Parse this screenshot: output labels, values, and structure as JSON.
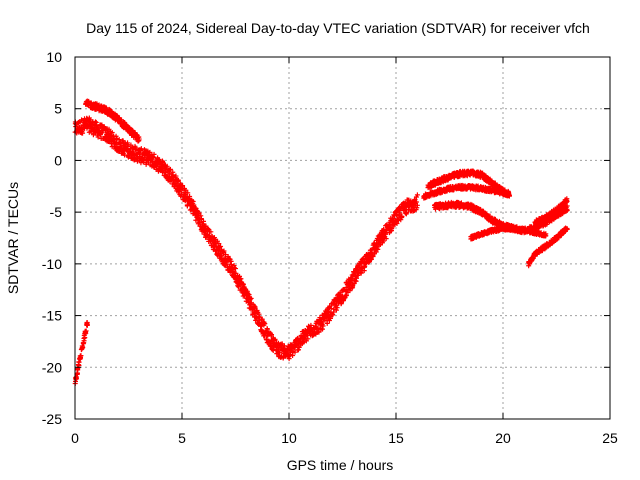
{
  "chart_data": {
    "type": "scatter",
    "title": "Day 115 of 2024, Sidereal Day-to-day VTEC variation (SDTVAR) for receiver vfch",
    "xlabel": "GPS time / hours",
    "ylabel": "SDTVAR / TECUs",
    "xlim": [
      0,
      25
    ],
    "ylim": [
      -25,
      10
    ],
    "xticks": [
      0,
      5,
      10,
      15,
      20,
      25
    ],
    "yticks": [
      -25,
      -20,
      -15,
      -10,
      -5,
      0,
      5,
      10
    ],
    "xtick_labels": [
      "0",
      "5",
      "10",
      "15",
      "20",
      "25"
    ],
    "ytick_labels": [
      "-25",
      "-20",
      "-15",
      "-10",
      "-5",
      "0",
      "5",
      "10"
    ],
    "grid": true,
    "legend": "none",
    "marker": "+",
    "series": [
      {
        "name": "main-trace",
        "color": "#ff0000",
        "x": [
          0.0,
          0.3,
          0.6,
          1.0,
          1.5,
          2.0,
          2.5,
          3.0,
          3.5,
          4.0,
          4.5,
          5.0,
          5.5,
          6.0,
          6.5,
          7.0,
          7.5,
          8.0,
          8.5,
          9.0,
          9.5,
          10.0,
          10.5,
          11.0,
          11.5,
          12.0,
          12.5,
          13.0,
          13.5,
          14.0,
          14.5,
          15.0,
          15.5,
          16.0
        ],
        "y": [
          3.0,
          3.3,
          3.5,
          3.0,
          2.5,
          1.5,
          1.0,
          0.5,
          0.2,
          -0.5,
          -1.5,
          -3.0,
          -4.5,
          -6.5,
          -8.0,
          -9.5,
          -11.0,
          -13.0,
          -15.0,
          -17.0,
          -18.3,
          -18.6,
          -17.5,
          -16.5,
          -15.8,
          -14.5,
          -13.0,
          -11.5,
          -10.0,
          -8.5,
          -7.0,
          -5.5,
          -4.5,
          -4.0
        ],
        "spread": 1.4
      },
      {
        "name": "upper-early-track",
        "color": "#ff0000",
        "x": [
          0.5,
          1.0,
          1.5,
          2.0,
          2.5,
          3.0
        ],
        "y": [
          5.5,
          5.2,
          4.8,
          4.0,
          3.0,
          2.0
        ],
        "spread": 0.6
      },
      {
        "name": "steep-start-segment",
        "color": "#ff0000",
        "x": [
          0.0,
          0.2,
          0.4,
          0.6
        ],
        "y": [
          -21.5,
          -19.5,
          -17.5,
          -15.5
        ],
        "spread": 0.5
      },
      {
        "name": "late-arc-1",
        "color": "#ff0000",
        "x": [
          16.5,
          17.0,
          17.5,
          18.0,
          18.5,
          19.0,
          19.5,
          20.0,
          20.3
        ],
        "y": [
          -2.5,
          -2.0,
          -1.6,
          -1.3,
          -1.2,
          -1.4,
          -2.2,
          -3.0,
          -3.3
        ],
        "spread": 0.5
      },
      {
        "name": "late-arc-2",
        "color": "#ff0000",
        "x": [
          16.3,
          17.0,
          17.5,
          18.0,
          18.5,
          19.0,
          19.5,
          20.0,
          20.3
        ],
        "y": [
          -3.5,
          -3.0,
          -2.7,
          -2.6,
          -2.6,
          -2.7,
          -2.9,
          -3.1,
          -3.3
        ],
        "spread": 0.4
      },
      {
        "name": "late-arc-3",
        "color": "#ff0000",
        "x": [
          16.8,
          17.5,
          18.0,
          18.5,
          19.0,
          19.5,
          20.0,
          20.5,
          21.0,
          21.5,
          22.0,
          22.5,
          23.0
        ],
        "y": [
          -4.5,
          -4.3,
          -4.3,
          -4.5,
          -5.0,
          -5.8,
          -6.3,
          -6.6,
          -6.8,
          -6.5,
          -6.0,
          -5.3,
          -4.6
        ],
        "spread": 0.5
      },
      {
        "name": "late-arc-4",
        "color": "#ff0000",
        "x": [
          18.5,
          19.0,
          19.5,
          20.0,
          20.5,
          21.0,
          21.5,
          22.0
        ],
        "y": [
          -7.5,
          -7.1,
          -6.8,
          -6.6,
          -6.6,
          -6.8,
          -7.0,
          -7.2
        ],
        "spread": 0.3
      },
      {
        "name": "late-arc-5",
        "color": "#ff0000",
        "x": [
          21.2,
          21.5,
          22.0,
          22.5,
          23.0
        ],
        "y": [
          -10.0,
          -9.0,
          -8.3,
          -7.5,
          -6.5
        ],
        "spread": 0.4
      },
      {
        "name": "late-arc-6",
        "color": "#ff0000",
        "x": [
          21.5,
          22.0,
          22.5,
          23.0
        ],
        "y": [
          -6.0,
          -5.5,
          -4.8,
          -3.8
        ],
        "spread": 0.4
      }
    ]
  }
}
